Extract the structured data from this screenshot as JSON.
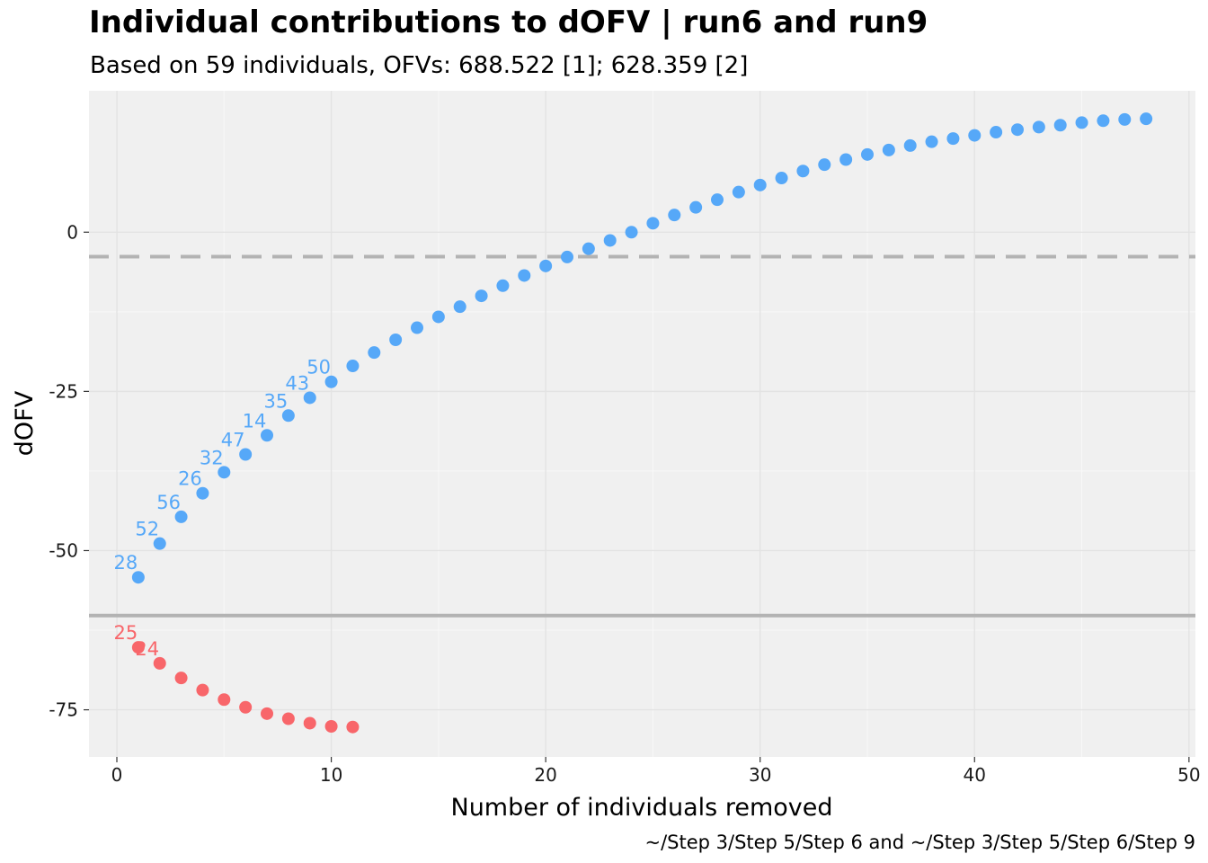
{
  "chart_data": {
    "type": "scatter",
    "title": "Individual contributions to dOFV | run6 and run9",
    "subtitle": "Based on 59 individuals, OFVs: 688.522 [1]; 628.359 [2]",
    "xlabel": "Number of individuals removed",
    "ylabel": "dOFV",
    "caption": "~/Step 3/Step 5/Step 6 and ~/Step 3/Step 5/Step 6/Step 9",
    "xlim": [
      -1.3,
      50.3
    ],
    "ylim": [
      -82.4,
      22.2
    ],
    "x_ticks": [
      0,
      10,
      20,
      30,
      40,
      50
    ],
    "y_ticks": [
      0,
      -25,
      -50,
      -75
    ],
    "x_tick_labels": [
      "0",
      "10",
      "20",
      "30",
      "40",
      "50"
    ],
    "y_tick_labels": [
      "0",
      "-25",
      "-50",
      "-75"
    ],
    "grid": true,
    "legend": "none",
    "reference_lines": [
      {
        "y": -3.84,
        "style": "dashed",
        "color": "#b3b3b3"
      },
      {
        "y": -60.2,
        "style": "solid",
        "color": "#b3b3b3"
      }
    ],
    "series": [
      {
        "color": "#56a8f8",
        "x": [
          1,
          2,
          3,
          4,
          5,
          6,
          7,
          8,
          9,
          10,
          11,
          12,
          13,
          14,
          15,
          16,
          17,
          18,
          19,
          20,
          21,
          22,
          23,
          24,
          25,
          26,
          27,
          28,
          29,
          30,
          31,
          32,
          33,
          34,
          35,
          36,
          37,
          38,
          39,
          40,
          41,
          42,
          43,
          44,
          45,
          46,
          47,
          48
        ],
        "y": [
          -54.2,
          -48.9,
          -44.7,
          -41.0,
          -37.7,
          -34.9,
          -31.9,
          -28.8,
          -26.0,
          -23.5,
          -21.0,
          -18.9,
          -16.9,
          -15.0,
          -13.3,
          -11.7,
          -10.0,
          -8.4,
          -6.8,
          -5.3,
          -3.9,
          -2.6,
          -1.3,
          0.0,
          1.4,
          2.7,
          3.9,
          5.1,
          6.3,
          7.4,
          8.5,
          9.6,
          10.6,
          11.4,
          12.2,
          12.9,
          13.6,
          14.2,
          14.7,
          15.2,
          15.7,
          16.1,
          16.5,
          16.8,
          17.2,
          17.5,
          17.7,
          17.8
        ],
        "labels": [
          {
            "x": 1,
            "text": "28"
          },
          {
            "x": 2,
            "text": "52"
          },
          {
            "x": 3,
            "text": "56"
          },
          {
            "x": 4,
            "text": "26"
          },
          {
            "x": 5,
            "text": "32"
          },
          {
            "x": 6,
            "text": "47"
          },
          {
            "x": 7,
            "text": "14"
          },
          {
            "x": 8,
            "text": "35"
          },
          {
            "x": 9,
            "text": "43"
          },
          {
            "x": 10,
            "text": "50"
          }
        ]
      },
      {
        "color": "#f8666a",
        "x": [
          1,
          2,
          3,
          4,
          5,
          6,
          7,
          8,
          9,
          10,
          11
        ],
        "y": [
          -65.2,
          -67.7,
          -70.0,
          -71.9,
          -73.4,
          -74.6,
          -75.6,
          -76.4,
          -77.1,
          -77.6,
          -77.7
        ],
        "labels": [
          {
            "x": 1,
            "text": "25"
          },
          {
            "x": 2,
            "text": "24"
          }
        ]
      }
    ]
  }
}
